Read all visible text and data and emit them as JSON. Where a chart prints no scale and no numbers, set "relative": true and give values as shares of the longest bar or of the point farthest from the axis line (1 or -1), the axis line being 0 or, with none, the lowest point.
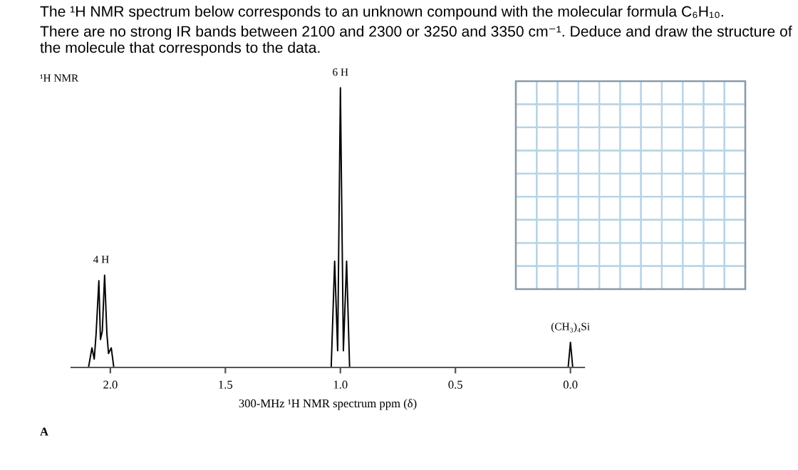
{
  "chart_data": {
    "type": "line",
    "relative": true,
    "title": "The ¹H NMR spectrum below corresponds to an unknown compound with the molecular formula C₆H₁₀.",
    "subtitle": "There are no strong IR bands between 2100 and 2300 or 3250 and 3350 cm⁻¹. Deduce and draw the structure of the molecule that corresponds to the data.",
    "xlabel": "300-MHz ¹H NMR spectrum ppm (δ)",
    "xlim": [
      2.17,
      -0.06
    ],
    "xticks": [
      {
        "value": 2.0,
        "label": "2.0"
      },
      {
        "value": 1.5,
        "label": "1.5"
      },
      {
        "value": 1.0,
        "label": "1.0"
      },
      {
        "value": 0.5,
        "label": "0.5"
      },
      {
        "value": 0.0,
        "label": "0.0"
      }
    ],
    "series": [
      {
        "color": "#000000",
        "x": [
          2.17,
          2.095,
          2.08,
          2.07,
          2.062,
          2.05,
          2.043,
          2.035,
          2.025,
          2.015,
          2.008,
          1.996,
          1.985,
          1.04,
          1.025,
          1.012,
          1.0,
          0.987,
          0.973,
          0.96,
          0.01,
          0.0,
          -0.01,
          -0.06
        ],
        "values": [
          0,
          0,
          0.07,
          0.03,
          0.12,
          0.31,
          0.1,
          0.13,
          0.33,
          0.12,
          0.05,
          0.07,
          0,
          0,
          0.38,
          0.06,
          1.0,
          0.06,
          0.38,
          0,
          0,
          0.09,
          0,
          0
        ]
      }
    ],
    "annotations": [
      "¹H NMR",
      {
        "text": "4 H",
        "x": 2.04,
        "y": 0.33
      },
      {
        "text": "6 H",
        "x": 1.0,
        "y": 1.0
      },
      {
        "text": "(CH₃)₄Si",
        "x": 0.0,
        "y": 0.09
      },
      "A"
    ],
    "grid": false,
    "legend": false
  }
}
